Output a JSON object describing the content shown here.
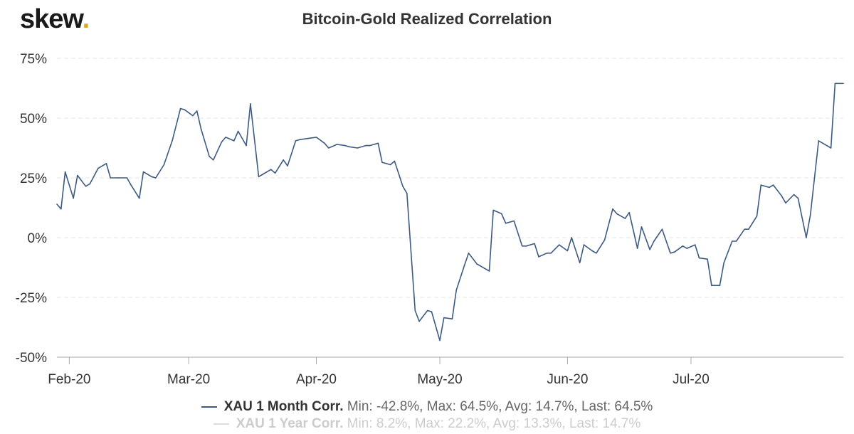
{
  "logo": {
    "text": "skew",
    "dot": "."
  },
  "chart_data": {
    "type": "line",
    "title": "Bitcoin-Gold Realized Correlation",
    "ylim": [
      -50,
      75
    ],
    "yticks": [
      -50,
      -25,
      0,
      25,
      50,
      75
    ],
    "ytick_labels": [
      "-50%",
      "-25%",
      "0%",
      "25%",
      "50%",
      "75%"
    ],
    "x_start": "2020-01-29",
    "x_end": "2020-07-30",
    "xticks": [
      {
        "date": "2020-02-01",
        "label": "Feb-20"
      },
      {
        "date": "2020-03-01",
        "label": "Mar-20"
      },
      {
        "date": "2020-04-01",
        "label": "Apr-20"
      },
      {
        "date": "2020-05-01",
        "label": "May-20"
      },
      {
        "date": "2020-06-01",
        "label": "Jun-20"
      },
      {
        "date": "2020-07-01",
        "label": "Jul-20"
      }
    ],
    "series": [
      {
        "name": "XAU 1 Month Corr.",
        "stats": "Min: -42.8%, Max: 64.5%, Avg: 14.7%, Last: 64.5%",
        "color": "#3d5a80",
        "visible": true,
        "points": [
          [
            "2020-01-29",
            14
          ],
          [
            "2020-01-30",
            12
          ],
          [
            "2020-01-31",
            27.5
          ],
          [
            "2020-02-02",
            16.5
          ],
          [
            "2020-02-03",
            26
          ],
          [
            "2020-02-05",
            21.5
          ],
          [
            "2020-02-06",
            22.5
          ],
          [
            "2020-02-08",
            29
          ],
          [
            "2020-02-10",
            31
          ],
          [
            "2020-02-11",
            25
          ],
          [
            "2020-02-13",
            25
          ],
          [
            "2020-02-15",
            25
          ],
          [
            "2020-02-16",
            22
          ],
          [
            "2020-02-18",
            16.5
          ],
          [
            "2020-02-19",
            27.5
          ],
          [
            "2020-02-21",
            25.5
          ],
          [
            "2020-02-22",
            25
          ],
          [
            "2020-02-24",
            30.5
          ],
          [
            "2020-02-26",
            40.5
          ],
          [
            "2020-02-28",
            54
          ],
          [
            "2020-02-29",
            53.5
          ],
          [
            "2020-03-02",
            51
          ],
          [
            "2020-03-03",
            53
          ],
          [
            "2020-03-04",
            45.5
          ],
          [
            "2020-03-06",
            34
          ],
          [
            "2020-03-07",
            32.5
          ],
          [
            "2020-03-09",
            40
          ],
          [
            "2020-03-10",
            42
          ],
          [
            "2020-03-12",
            40.5
          ],
          [
            "2020-03-13",
            44.5
          ],
          [
            "2020-03-15",
            38.5
          ],
          [
            "2020-03-16",
            56
          ],
          [
            "2020-03-18",
            25.5
          ],
          [
            "2020-03-19",
            26.5
          ],
          [
            "2020-03-21",
            28.5
          ],
          [
            "2020-03-22",
            27
          ],
          [
            "2020-03-24",
            32.5
          ],
          [
            "2020-03-25",
            30
          ],
          [
            "2020-03-27",
            40.5
          ],
          [
            "2020-03-28",
            41
          ],
          [
            "2020-03-30",
            41.5
          ],
          [
            "2020-04-01",
            42
          ],
          [
            "2020-04-03",
            39.5
          ],
          [
            "2020-04-04",
            37.5
          ],
          [
            "2020-04-06",
            39
          ],
          [
            "2020-04-08",
            38.5
          ],
          [
            "2020-04-09",
            38
          ],
          [
            "2020-04-11",
            37.5
          ],
          [
            "2020-04-13",
            38.5
          ],
          [
            "2020-04-14",
            38.5
          ],
          [
            "2020-04-16",
            39.5
          ],
          [
            "2020-04-17",
            31.5
          ],
          [
            "2020-04-19",
            30.5
          ],
          [
            "2020-04-20",
            32
          ],
          [
            "2020-04-22",
            21.5
          ],
          [
            "2020-04-23",
            18.5
          ],
          [
            "2020-04-25",
            -30.5
          ],
          [
            "2020-04-26",
            -35
          ],
          [
            "2020-04-28",
            -30.5
          ],
          [
            "2020-04-29",
            -31
          ],
          [
            "2020-05-01",
            -43
          ],
          [
            "2020-05-02",
            -33.5
          ],
          [
            "2020-05-04",
            -34
          ],
          [
            "2020-05-05",
            -22
          ],
          [
            "2020-05-07",
            -11.5
          ],
          [
            "2020-05-08",
            -6.5
          ],
          [
            "2020-05-10",
            -11
          ],
          [
            "2020-05-11",
            -12
          ],
          [
            "2020-05-13",
            -14
          ],
          [
            "2020-05-14",
            11.5
          ],
          [
            "2020-05-16",
            10
          ],
          [
            "2020-05-17",
            6
          ],
          [
            "2020-05-19",
            7
          ],
          [
            "2020-05-21",
            -3.5
          ],
          [
            "2020-05-22",
            -3.5
          ],
          [
            "2020-05-24",
            -2.5
          ],
          [
            "2020-05-25",
            -8
          ],
          [
            "2020-05-27",
            -6.5
          ],
          [
            "2020-05-28",
            -6.5
          ],
          [
            "2020-05-30",
            -3
          ],
          [
            "2020-06-01",
            -5.5
          ],
          [
            "2020-06-02",
            0
          ],
          [
            "2020-06-04",
            -10.5
          ],
          [
            "2020-06-05",
            -3
          ],
          [
            "2020-06-07",
            -5.5
          ],
          [
            "2020-06-08",
            -6.5
          ],
          [
            "2020-06-10",
            -1
          ],
          [
            "2020-06-12",
            12
          ],
          [
            "2020-06-13",
            10
          ],
          [
            "2020-06-15",
            8
          ],
          [
            "2020-06-16",
            10.5
          ],
          [
            "2020-06-18",
            -4.5
          ],
          [
            "2020-06-19",
            4.5
          ],
          [
            "2020-06-21",
            -5
          ],
          [
            "2020-06-22",
            -1.5
          ],
          [
            "2020-06-24",
            3.5
          ],
          [
            "2020-06-26",
            -6.5
          ],
          [
            "2020-06-27",
            -6
          ],
          [
            "2020-06-29",
            -3.5
          ],
          [
            "2020-06-30",
            -4.5
          ],
          [
            "2020-07-02",
            -3
          ],
          [
            "2020-07-03",
            -8.5
          ],
          [
            "2020-07-05",
            -9
          ],
          [
            "2020-07-06",
            -20
          ],
          [
            "2020-07-08",
            -20
          ],
          [
            "2020-07-09",
            -10.5
          ],
          [
            "2020-07-11",
            -1.5
          ],
          [
            "2020-07-12",
            -1.5
          ],
          [
            "2020-07-14",
            3.5
          ],
          [
            "2020-07-15",
            3.5
          ],
          [
            "2020-07-17",
            9
          ],
          [
            "2020-07-18",
            22
          ],
          [
            "2020-07-20",
            21
          ],
          [
            "2020-07-21",
            22
          ],
          [
            "2020-07-23",
            17.5
          ],
          [
            "2020-07-24",
            14.5
          ],
          [
            "2020-07-26",
            18
          ],
          [
            "2020-07-27",
            16.5
          ],
          [
            "2020-07-29",
            0
          ],
          [
            "2020-07-30",
            9.5
          ],
          [
            "2020-08-01",
            40.5
          ],
          [
            "2020-08-02",
            39.5
          ],
          [
            "2020-08-04",
            37.5
          ],
          [
            "2020-08-05",
            64.5
          ],
          [
            "2020-08-07",
            64.5
          ]
        ]
      },
      {
        "name": "XAU 1 Year Corr.",
        "stats": "Min: 8.2%, Max: 22.2%, Avg: 13.3%, Last: 14.7%",
        "color": "#cccccc",
        "visible": false,
        "points": []
      }
    ]
  }
}
